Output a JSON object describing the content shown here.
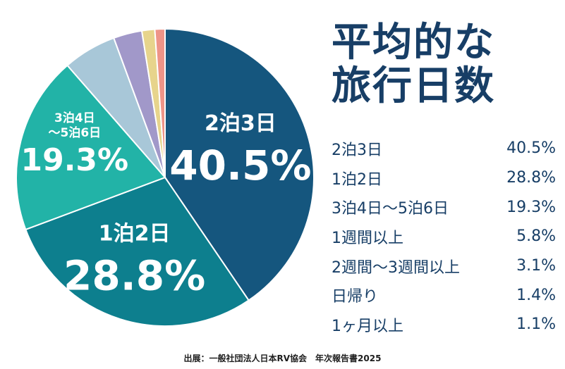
{
  "title_line1": "平均的な",
  "title_line2": "旅行日数",
  "source": "出展：一般社団法人日本RV協会　年次報告書2025",
  "chart_data": {
    "type": "pie",
    "title": "平均的な旅行日数",
    "slices": [
      {
        "label": "2泊3日",
        "value": 40.5,
        "display": "40.5%",
        "color": "#15567e",
        "pie_label": [
          "2泊3日"
        ],
        "pie_value": "40.5%"
      },
      {
        "label": "1泊2日",
        "value": 28.8,
        "display": "28.8%",
        "color": "#0d7f8e",
        "pie_label": [
          "1泊2日"
        ],
        "pie_value": "28.8%"
      },
      {
        "label": "3泊4日〜5泊6日",
        "value": 19.3,
        "display": "19.3%",
        "color": "#22b3a7",
        "pie_label": [
          "3泊4日",
          "〜5泊6日"
        ],
        "pie_value": "19.3%"
      },
      {
        "label": "1週間以上",
        "value": 5.8,
        "display": "5.8%",
        "color": "#a8c7d8"
      },
      {
        "label": "2週間〜3週間以上",
        "value": 3.1,
        "display": "3.1%",
        "color": "#a198c9"
      },
      {
        "label": "日帰り",
        "value": 1.4,
        "display": "1.4%",
        "color": "#e7d48c"
      },
      {
        "label": "1ヶ月以上",
        "value": 1.1,
        "display": "1.1%",
        "color": "#ee9488"
      }
    ]
  }
}
